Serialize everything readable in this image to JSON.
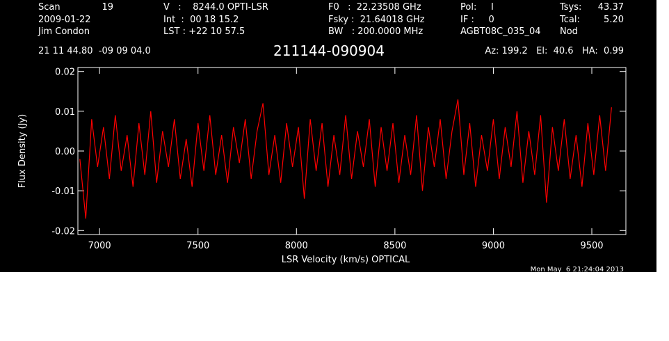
{
  "header": [
    [
      "Scan",
      "19",
      "V   :    8244.0 OPTI-LSR",
      "F0   :  22.23508 GHz",
      "Pol:     I",
      "Tsys:",
      "43.37"
    ],
    [
      "2009-01-22",
      "Int  :  00 18 15.2",
      "Fsky :  21.64018 GHz",
      "IF :     0",
      "Tcal:",
      "5.20"
    ],
    [
      "Jim Condon",
      "LST : +22 10 57.5",
      "BW   : 200.0000 MHz",
      "AGBT08C_035_04",
      "Nod"
    ],
    [
      "21 11 44.80  -09 09 04.0",
      "Az: 199.2   El:  40.6   HA:  0.99"
    ]
  ],
  "chart_data": {
    "type": "line",
    "title": "211144-090904",
    "x_label": "LSR Velocity (km/s) OPTICAL",
    "y_label": "Flux Density (Jy)",
    "timestamp": "Mon May  6 21:24:04 2013",
    "x": [
      6900,
      6930,
      6960,
      6990,
      7020,
      7050,
      7080,
      7110,
      7140,
      7170,
      7200,
      7230,
      7260,
      7290,
      7320,
      7350,
      7380,
      7410,
      7440,
      7470,
      7500,
      7530,
      7560,
      7590,
      7620,
      7650,
      7680,
      7710,
      7740,
      7770,
      7800,
      7830,
      7860,
      7890,
      7920,
      7950,
      7980,
      8010,
      8040,
      8070,
      8100,
      8130,
      8160,
      8190,
      8220,
      8250,
      8280,
      8310,
      8340,
      8370,
      8400,
      8430,
      8460,
      8490,
      8520,
      8550,
      8580,
      8610,
      8640,
      8670,
      8700,
      8730,
      8760,
      8790,
      8820,
      8850,
      8880,
      8910,
      8940,
      8970,
      9000,
      9030,
      9060,
      9090,
      9120,
      9150,
      9180,
      9210,
      9240,
      9270,
      9300,
      9330,
      9360,
      9390,
      9420,
      9450,
      9480,
      9510,
      9540,
      9570,
      9600
    ],
    "series": [
      {
        "color": "#ff0000",
        "values": [
          -0.002,
          -0.017,
          0.008,
          -0.004,
          0.006,
          -0.007,
          0.009,
          -0.005,
          0.004,
          -0.009,
          0.007,
          -0.006,
          0.01,
          -0.008,
          0.005,
          -0.004,
          0.008,
          -0.007,
          0.003,
          -0.009,
          0.007,
          -0.005,
          0.009,
          -0.006,
          0.004,
          -0.008,
          0.006,
          -0.003,
          0.008,
          -0.007,
          0.005,
          0.012,
          -0.006,
          0.004,
          -0.008,
          0.007,
          -0.004,
          0.006,
          -0.012,
          0.008,
          -0.005,
          0.007,
          -0.009,
          0.004,
          -0.006,
          0.009,
          -0.007,
          0.005,
          -0.004,
          0.008,
          -0.009,
          0.006,
          -0.005,
          0.007,
          -0.008,
          0.004,
          -0.006,
          0.009,
          -0.01,
          0.006,
          -0.004,
          0.008,
          -0.007,
          0.005,
          0.013,
          -0.006,
          0.007,
          -0.009,
          0.004,
          -0.005,
          0.008,
          -0.007,
          0.006,
          -0.004,
          0.01,
          -0.008,
          0.005,
          -0.006,
          0.009,
          -0.013,
          0.006,
          -0.005,
          0.008,
          -0.007,
          0.004,
          -0.009,
          0.007,
          -0.006,
          0.009,
          -0.005,
          0.011
        ]
      }
    ],
    "xlim": [
      6890,
      9673
    ],
    "xticks": [
      7000,
      7500,
      8000,
      8500,
      9000,
      9500
    ],
    "ylim": [
      -0.021,
      0.021
    ],
    "yticks": [
      -0.02,
      -0.01,
      {
        "value": 0,
        "label": "0.00"
      },
      0.01,
      0.02
    ]
  }
}
